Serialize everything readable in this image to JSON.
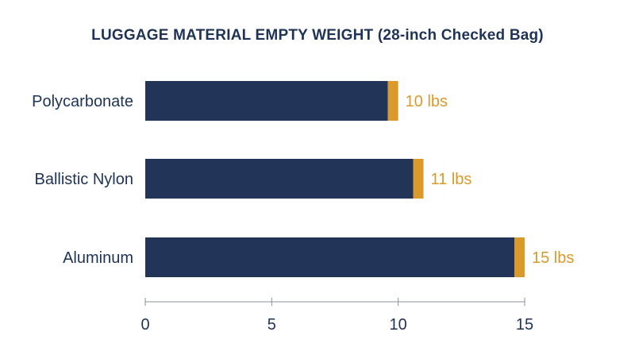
{
  "chart_data": {
    "type": "bar",
    "orientation": "horizontal",
    "title": "LUGGAGE MATERIAL EMPTY WEIGHT (28-inch Checked Bag)",
    "categories": [
      "Polycarbonate",
      "Ballistic Nylon",
      "Aluminum"
    ],
    "values": [
      10,
      11,
      15
    ],
    "value_labels": [
      "10 lbs",
      "11 lbs",
      "15 lbs"
    ],
    "xticks": [
      0,
      5,
      10,
      15
    ],
    "xlim": [
      0,
      15
    ],
    "grid": false,
    "colors": {
      "bar": "#223457",
      "bar_cap": "#d99a2b",
      "value_label": "#d99a2b",
      "text": "#1f3356",
      "axis": "#8a8f98"
    }
  }
}
